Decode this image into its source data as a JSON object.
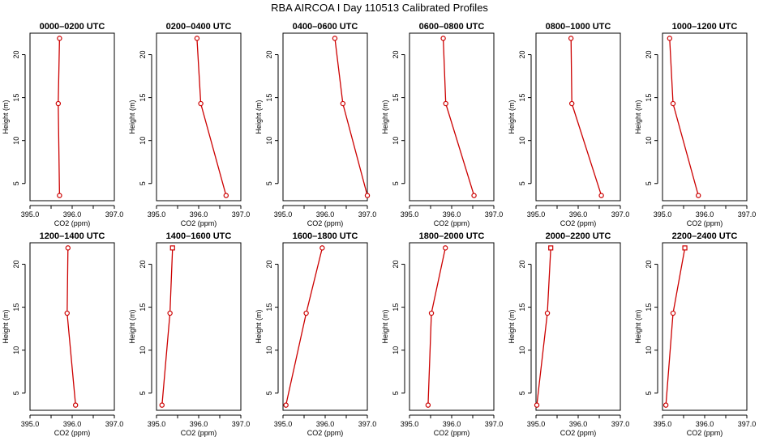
{
  "title": "RBA AIRCOA I  Day 110513  Calibrated Profiles",
  "chart_data": {
    "type": "line",
    "title": "RBA AIRCOA I  Day 110513  Calibrated Profiles",
    "xlabel": "CO2 (ppm)",
    "ylabel": "Height (m)",
    "xlim": [
      395.0,
      397.0
    ],
    "ylim": [
      3,
      22.5
    ],
    "x_ticks": [
      "395.0",
      "396.0",
      "397.0"
    ],
    "y_ticks": [
      "5",
      "10",
      "15",
      "20"
    ],
    "heights": [
      3.6,
      14.3,
      21.9
    ],
    "color": "#cc0000",
    "panels": [
      {
        "title": "0000–0200 UTC",
        "x": [
          395.7,
          395.67,
          395.7
        ],
        "marker": "circle"
      },
      {
        "title": "0200–0400 UTC",
        "x": [
          396.65,
          396.05,
          395.96
        ],
        "marker": "circle"
      },
      {
        "title": "0400–0600 UTC",
        "x": [
          397.0,
          396.42,
          396.23
        ],
        "marker": "circle"
      },
      {
        "title": "0600–0800 UTC",
        "x": [
          396.53,
          395.86,
          395.8
        ],
        "marker": "circle"
      },
      {
        "title": "0800–1000 UTC",
        "x": [
          396.55,
          395.85,
          395.83
        ],
        "marker": "circle"
      },
      {
        "title": "1000–1200 UTC",
        "x": [
          395.85,
          395.25,
          395.17
        ],
        "marker": "circle"
      },
      {
        "title": "1200–1400 UTC",
        "x": [
          396.08,
          395.88,
          395.9
        ],
        "marker": "circle"
      },
      {
        "title": "1400–1600 UTC",
        "x": [
          395.13,
          395.32,
          395.38
        ],
        "marker": "mixed"
      },
      {
        "title": "1600–1800 UTC",
        "x": [
          395.07,
          395.55,
          395.93
        ],
        "marker": "circle"
      },
      {
        "title": "1800–2000 UTC",
        "x": [
          395.44,
          395.52,
          395.85
        ],
        "marker": "circle"
      },
      {
        "title": "2000–2200 UTC",
        "x": [
          395.02,
          395.27,
          395.35
        ],
        "marker": "mixed"
      },
      {
        "title": "2200–2400 UTC",
        "x": [
          395.08,
          395.25,
          395.53
        ],
        "marker": "mixed"
      }
    ]
  }
}
